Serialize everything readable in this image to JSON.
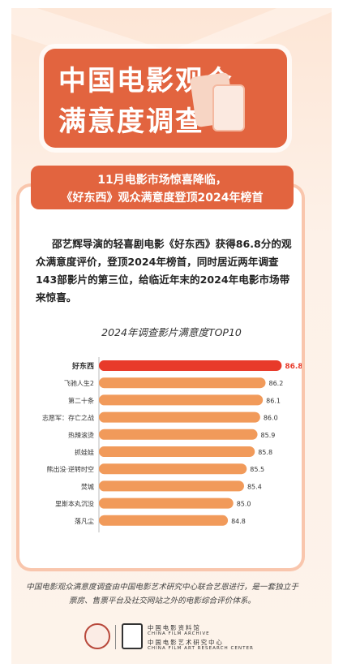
{
  "title": {
    "line1": "中国电影观众",
    "line2": "满意度调查"
  },
  "subtitle": {
    "line1": "11月电影市场惊喜降临，",
    "line2": "《好东西》观众满意度登顶2024年榜首"
  },
  "intro": "邵艺辉导演的轻喜剧电影《好东西》获得86.8分的观众满意度评价，登顶2024年榜首，同时居近两年调查143部影片的第三位，给临近年末的2024年电影市场带来惊喜。",
  "chart_data": {
    "type": "bar",
    "orientation": "horizontal",
    "title": "2024年调查影片满意度TOP10",
    "categories": [
      "好东西",
      "飞驰人生2",
      "第二十条",
      "志愿军：存亡之战",
      "热辣滚烫",
      "抓娃娃",
      "熊出没·逆转时空",
      "焚城",
      "里斯本丸沉没",
      "落凡尘"
    ],
    "values": [
      86.8,
      86.2,
      86.1,
      86.0,
      85.9,
      85.8,
      85.5,
      85.4,
      85.0,
      84.8
    ],
    "value_labels": [
      "86.8",
      "86.2",
      "86.1",
      "86.0",
      "85.9",
      "85.8",
      "85.5",
      "85.4",
      "85.0",
      "84.8"
    ],
    "highlight_index": 0,
    "highlight_color": "#e83a2a",
    "bar_color": "#f19a5a",
    "xlim": [
      80,
      87
    ],
    "grid": false,
    "legend": "none"
  },
  "footnote": "中国电影观众满意度调查由中国电影艺术研究中心联合艺恩进行，是一套独立于票房、售票平台及社交网站之外的电影综合评价体系。",
  "organizations": {
    "cn1": "中国电影资料馆",
    "en1": "CHINA FILM ARCHIVE",
    "cn2": "中国电影艺术研究中心",
    "en2": "CHINA FILM ART RESEARCH CENTER"
  },
  "colors": {
    "accent": "#e2643f",
    "background": "#fde6d6"
  }
}
